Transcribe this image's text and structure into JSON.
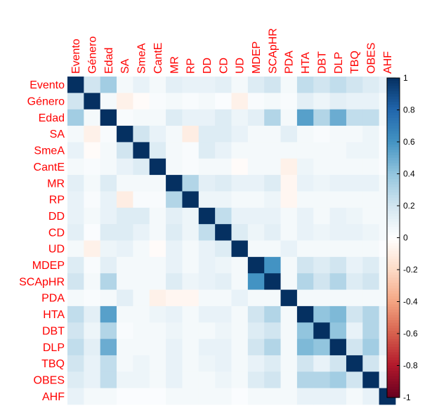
{
  "chart_data": {
    "type": "heatmap",
    "title": "",
    "variables": [
      "Evento",
      "Género",
      "Edad",
      "SA",
      "SmeA",
      "CantE",
      "MR",
      "RP",
      "DD",
      "CD",
      "UD",
      "MDEP",
      "SCApHR",
      "PDA",
      "HTA",
      "DBT",
      "DLP",
      "TBQ",
      "OBES",
      "AHF"
    ],
    "matrix": [
      [
        1.0,
        0.2,
        0.35,
        0.05,
        0.1,
        0.05,
        0.12,
        0.1,
        0.1,
        0.12,
        0.05,
        0.15,
        0.2,
        0.05,
        0.25,
        0.2,
        0.25,
        0.2,
        0.15,
        0.1
      ],
      [
        0.2,
        1.0,
        0.05,
        -0.08,
        -0.02,
        0.03,
        0.05,
        0.03,
        0.05,
        0.02,
        -0.08,
        0.03,
        0.05,
        0.03,
        0.12,
        0.08,
        0.12,
        0.1,
        0.1,
        0.05
      ],
      [
        0.35,
        0.05,
        1.0,
        0.03,
        0.05,
        0.05,
        0.15,
        0.1,
        0.1,
        0.15,
        0.08,
        0.12,
        0.3,
        0.05,
        0.55,
        0.3,
        0.5,
        0.25,
        0.25,
        0.05
      ],
      [
        0.05,
        -0.08,
        0.03,
        1.0,
        0.2,
        0.1,
        0.05,
        -0.1,
        0.15,
        0.15,
        0.1,
        0.05,
        0.05,
        0.12,
        0.05,
        0.03,
        0.05,
        0.05,
        0.08,
        0.02
      ],
      [
        0.1,
        -0.02,
        0.05,
        0.2,
        1.0,
        0.15,
        0.05,
        0.03,
        0.15,
        0.1,
        0.05,
        0.05,
        0.05,
        0.05,
        0.05,
        0.05,
        0.05,
        0.08,
        0.08,
        0.02
      ],
      [
        0.05,
        0.03,
        0.05,
        0.1,
        0.15,
        1.0,
        0.05,
        0.03,
        0.05,
        0.05,
        -0.02,
        0.05,
        0.05,
        -0.08,
        0.08,
        0.05,
        0.05,
        0.05,
        0.05,
        0.02
      ],
      [
        0.12,
        0.05,
        0.15,
        0.05,
        0.05,
        0.05,
        1.0,
        0.3,
        0.12,
        0.15,
        0.1,
        0.1,
        0.15,
        -0.05,
        0.1,
        0.08,
        0.1,
        0.1,
        0.1,
        0.05
      ],
      [
        0.1,
        0.03,
        0.1,
        -0.1,
        0.03,
        0.03,
        0.3,
        1.0,
        0.08,
        0.08,
        0.05,
        0.05,
        0.08,
        -0.05,
        0.05,
        0.05,
        0.05,
        0.05,
        0.05,
        0.05
      ],
      [
        0.1,
        0.05,
        0.1,
        0.15,
        0.15,
        0.05,
        0.12,
        0.08,
        1.0,
        0.25,
        0.1,
        0.1,
        0.1,
        0.05,
        0.1,
        0.05,
        0.1,
        0.08,
        0.05,
        0.05
      ],
      [
        0.12,
        0.02,
        0.15,
        0.15,
        0.1,
        0.05,
        0.15,
        0.08,
        0.25,
        1.0,
        0.15,
        0.08,
        0.12,
        0.05,
        0.1,
        0.08,
        0.1,
        0.1,
        0.08,
        0.05
      ],
      [
        0.05,
        -0.08,
        0.08,
        0.1,
        0.05,
        -0.02,
        0.1,
        0.05,
        0.1,
        0.15,
        1.0,
        0.05,
        0.05,
        0.1,
        0.05,
        0.05,
        0.05,
        0.05,
        0.05,
        0.02
      ],
      [
        0.15,
        0.03,
        0.12,
        0.05,
        0.05,
        0.05,
        0.1,
        0.05,
        0.1,
        0.08,
        0.05,
        1.0,
        0.6,
        0.05,
        0.2,
        0.15,
        0.2,
        0.1,
        0.15,
        0.05
      ],
      [
        0.2,
        0.05,
        0.3,
        0.05,
        0.05,
        0.05,
        0.15,
        0.08,
        0.1,
        0.12,
        0.05,
        0.6,
        1.0,
        0.05,
        0.3,
        0.2,
        0.3,
        0.15,
        0.2,
        0.05
      ],
      [
        0.05,
        0.03,
        0.05,
        0.12,
        0.05,
        -0.08,
        -0.05,
        -0.05,
        0.05,
        0.05,
        0.1,
        0.05,
        0.05,
        1.0,
        0.05,
        0.05,
        0.05,
        0.05,
        0.05,
        0.05
      ],
      [
        0.25,
        0.12,
        0.55,
        0.05,
        0.05,
        0.08,
        0.1,
        0.05,
        0.1,
        0.1,
        0.05,
        0.2,
        0.3,
        0.05,
        1.0,
        0.4,
        0.45,
        0.2,
        0.3,
        0.1
      ],
      [
        0.2,
        0.08,
        0.3,
        0.03,
        0.05,
        0.05,
        0.08,
        0.05,
        0.05,
        0.08,
        0.05,
        0.15,
        0.2,
        0.05,
        0.4,
        1.0,
        0.4,
        0.1,
        0.3,
        0.1
      ],
      [
        0.25,
        0.12,
        0.5,
        0.05,
        0.05,
        0.05,
        0.1,
        0.05,
        0.1,
        0.1,
        0.05,
        0.2,
        0.3,
        0.05,
        0.45,
        0.4,
        1.0,
        0.2,
        0.35,
        0.1
      ],
      [
        0.2,
        0.1,
        0.25,
        0.05,
        0.08,
        0.05,
        0.1,
        0.05,
        0.08,
        0.1,
        0.05,
        0.1,
        0.15,
        0.05,
        0.2,
        0.1,
        0.2,
        1.0,
        0.2,
        0.05
      ],
      [
        0.15,
        0.1,
        0.25,
        0.08,
        0.08,
        0.05,
        0.1,
        0.05,
        0.05,
        0.08,
        0.05,
        0.15,
        0.2,
        0.05,
        0.3,
        0.3,
        0.35,
        0.2,
        1.0,
        0.1
      ],
      [
        0.1,
        0.05,
        0.05,
        0.02,
        0.02,
        0.02,
        0.05,
        0.05,
        0.05,
        0.05,
        0.02,
        0.05,
        0.05,
        0.05,
        0.1,
        0.1,
        0.1,
        0.05,
        0.1,
        1.0
      ]
    ],
    "color_scale": {
      "min": -1,
      "max": 1,
      "ticks": [
        "1",
        "0.8",
        "0.6",
        "0.4",
        "0.2",
        "0",
        "-0.2",
        "-0.4",
        "-0.6",
        "-0.8",
        "-1"
      ],
      "palette": [
        "#67001F",
        "#B2182B",
        "#D6604D",
        "#F4A582",
        "#FDDBC7",
        "#FFFFFF",
        "#D1E5F0",
        "#92C5DE",
        "#4393C3",
        "#2166AC",
        "#053061"
      ]
    },
    "label_color": "#FF0000",
    "legend_position": "right"
  }
}
